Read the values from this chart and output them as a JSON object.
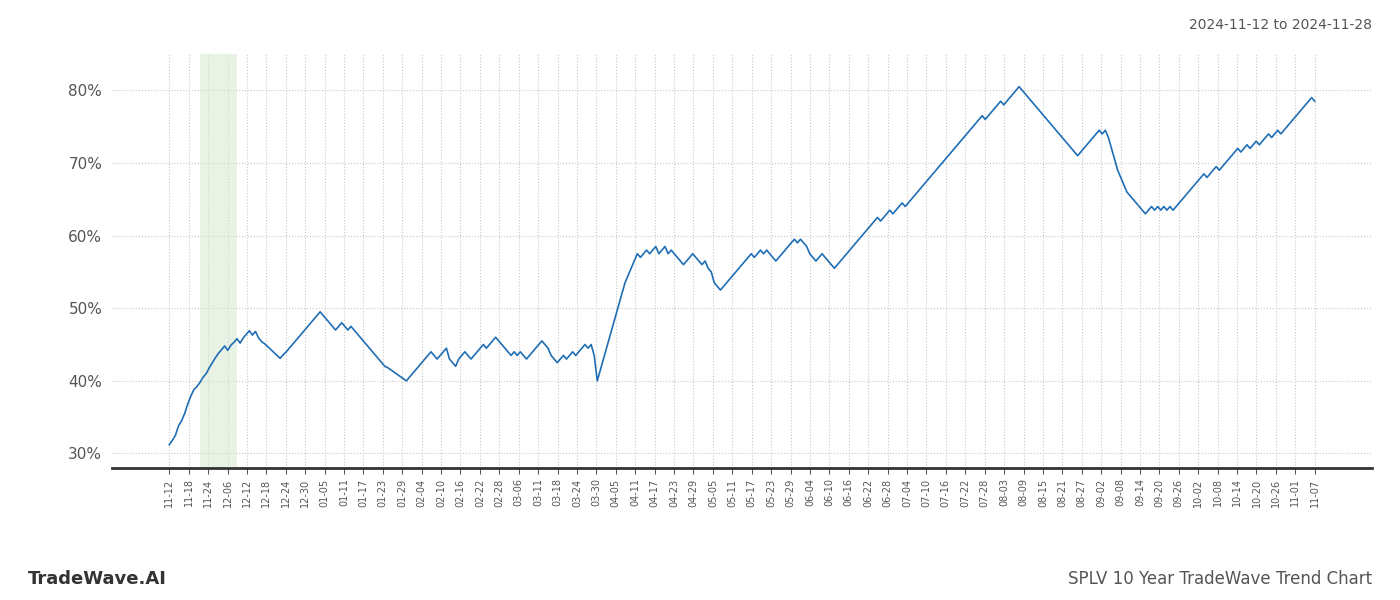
{
  "title_top_right": "2024-11-12 to 2024-11-28",
  "title_bottom_left": "TradeWave.AI",
  "title_bottom_right": "SPLV 10 Year TradeWave Trend Chart",
  "line_color": "#1f6eb5",
  "line_width": 1.2,
  "background_color": "#ffffff",
  "grid_color": "#c8c8c8",
  "grid_style": "dotted",
  "shade_color": "#d6e8d0",
  "shade_alpha": 0.55,
  "ylim": [
    28,
    85
  ],
  "yticks": [
    30,
    40,
    50,
    60,
    70,
    80
  ],
  "x_labels": [
    "11-12",
    "11-18",
    "11-24",
    "12-06",
    "12-12",
    "12-18",
    "12-24",
    "12-30",
    "01-05",
    "01-11",
    "01-17",
    "01-23",
    "01-29",
    "02-04",
    "02-10",
    "02-16",
    "02-22",
    "02-28",
    "03-06",
    "03-11",
    "03-18",
    "03-24",
    "03-30",
    "04-05",
    "04-11",
    "04-17",
    "04-23",
    "04-29",
    "05-05",
    "05-11",
    "05-17",
    "05-23",
    "05-29",
    "06-04",
    "06-10",
    "06-16",
    "06-22",
    "06-28",
    "07-04",
    "07-10",
    "07-16",
    "07-22",
    "07-28",
    "08-03",
    "08-09",
    "08-15",
    "08-21",
    "08-27",
    "09-02",
    "09-08",
    "09-14",
    "09-20",
    "09-26",
    "10-02",
    "10-08",
    "10-14",
    "10-20",
    "10-26",
    "11-01",
    "11-07"
  ],
  "shade_x_start_label": "11-18",
  "shade_x_end_label": "11-30",
  "values": [
    31.2,
    31.8,
    32.5,
    33.8,
    34.5,
    35.5,
    36.8,
    37.9,
    38.8,
    39.2,
    39.8,
    40.5,
    41.0,
    41.8,
    42.5,
    43.2,
    43.8,
    44.3,
    44.8,
    44.2,
    44.9,
    45.3,
    45.8,
    45.2,
    45.9,
    46.4,
    46.9,
    46.3,
    46.8,
    45.9,
    45.4,
    45.1,
    44.7,
    44.3,
    43.9,
    43.5,
    43.1,
    43.6,
    44.0,
    44.5,
    45.0,
    45.5,
    46.0,
    46.5,
    47.0,
    47.5,
    48.0,
    48.5,
    49.0,
    49.5,
    49.0,
    48.5,
    48.0,
    47.5,
    47.0,
    47.5,
    48.0,
    47.5,
    47.0,
    47.5,
    47.0,
    46.5,
    46.0,
    45.5,
    45.0,
    44.5,
    44.0,
    43.5,
    43.0,
    42.5,
    42.0,
    41.8,
    41.5,
    41.2,
    40.9,
    40.6,
    40.3,
    40.0,
    40.5,
    41.0,
    41.5,
    42.0,
    42.5,
    43.0,
    43.5,
    44.0,
    43.5,
    43.0,
    43.5,
    44.0,
    44.5,
    43.0,
    42.5,
    42.0,
    43.0,
    43.5,
    44.0,
    43.5,
    43.0,
    43.5,
    44.0,
    44.5,
    45.0,
    44.5,
    45.0,
    45.5,
    46.0,
    45.5,
    45.0,
    44.5,
    44.0,
    43.5,
    44.0,
    43.5,
    44.0,
    43.5,
    43.0,
    43.5,
    44.0,
    44.5,
    45.0,
    45.5,
    45.0,
    44.5,
    43.5,
    43.0,
    42.5,
    43.0,
    43.5,
    43.0,
    43.5,
    44.0,
    43.5,
    44.0,
    44.5,
    45.0,
    44.5,
    45.0,
    43.5,
    40.0,
    41.5,
    43.0,
    44.5,
    46.0,
    47.5,
    49.0,
    50.5,
    52.0,
    53.5,
    54.5,
    55.5,
    56.5,
    57.5,
    57.0,
    57.5,
    58.0,
    57.5,
    58.0,
    58.5,
    57.5,
    58.0,
    58.5,
    57.5,
    58.0,
    57.5,
    57.0,
    56.5,
    56.0,
    56.5,
    57.0,
    57.5,
    57.0,
    56.5,
    56.0,
    56.5,
    55.5,
    55.0,
    53.5,
    53.0,
    52.5,
    53.0,
    53.5,
    54.0,
    54.5,
    55.0,
    55.5,
    56.0,
    56.5,
    57.0,
    57.5,
    57.0,
    57.5,
    58.0,
    57.5,
    58.0,
    57.5,
    57.0,
    56.5,
    57.0,
    57.5,
    58.0,
    58.5,
    59.0,
    59.5,
    59.0,
    59.5,
    59.0,
    58.5,
    57.5,
    57.0,
    56.5,
    57.0,
    57.5,
    57.0,
    56.5,
    56.0,
    55.5,
    56.0,
    56.5,
    57.0,
    57.5,
    58.0,
    58.5,
    59.0,
    59.5,
    60.0,
    60.5,
    61.0,
    61.5,
    62.0,
    62.5,
    62.0,
    62.5,
    63.0,
    63.5,
    63.0,
    63.5,
    64.0,
    64.5,
    64.0,
    64.5,
    65.0,
    65.5,
    66.0,
    66.5,
    67.0,
    67.5,
    68.0,
    68.5,
    69.0,
    69.5,
    70.0,
    70.5,
    71.0,
    71.5,
    72.0,
    72.5,
    73.0,
    73.5,
    74.0,
    74.5,
    75.0,
    75.5,
    76.0,
    76.5,
    76.0,
    76.5,
    77.0,
    77.5,
    78.0,
    78.5,
    78.0,
    78.5,
    79.0,
    79.5,
    80.0,
    80.5,
    80.0,
    79.5,
    79.0,
    78.5,
    78.0,
    77.5,
    77.0,
    76.5,
    76.0,
    75.5,
    75.0,
    74.5,
    74.0,
    73.5,
    73.0,
    72.5,
    72.0,
    71.5,
    71.0,
    71.5,
    72.0,
    72.5,
    73.0,
    73.5,
    74.0,
    74.5,
    74.0,
    74.5,
    73.5,
    72.0,
    70.5,
    69.0,
    68.0,
    67.0,
    66.0,
    65.5,
    65.0,
    64.5,
    64.0,
    63.5,
    63.0,
    63.5,
    64.0,
    63.5,
    64.0,
    63.5,
    64.0,
    63.5,
    64.0,
    63.5,
    64.0,
    64.5,
    65.0,
    65.5,
    66.0,
    66.5,
    67.0,
    67.5,
    68.0,
    68.5,
    68.0,
    68.5,
    69.0,
    69.5,
    69.0,
    69.5,
    70.0,
    70.5,
    71.0,
    71.5,
    72.0,
    71.5,
    72.0,
    72.5,
    72.0,
    72.5,
    73.0,
    72.5,
    73.0,
    73.5,
    74.0,
    73.5,
    74.0,
    74.5,
    74.0,
    74.5,
    75.0,
    75.5,
    76.0,
    76.5,
    77.0,
    77.5,
    78.0,
    78.5,
    79.0,
    78.5
  ]
}
